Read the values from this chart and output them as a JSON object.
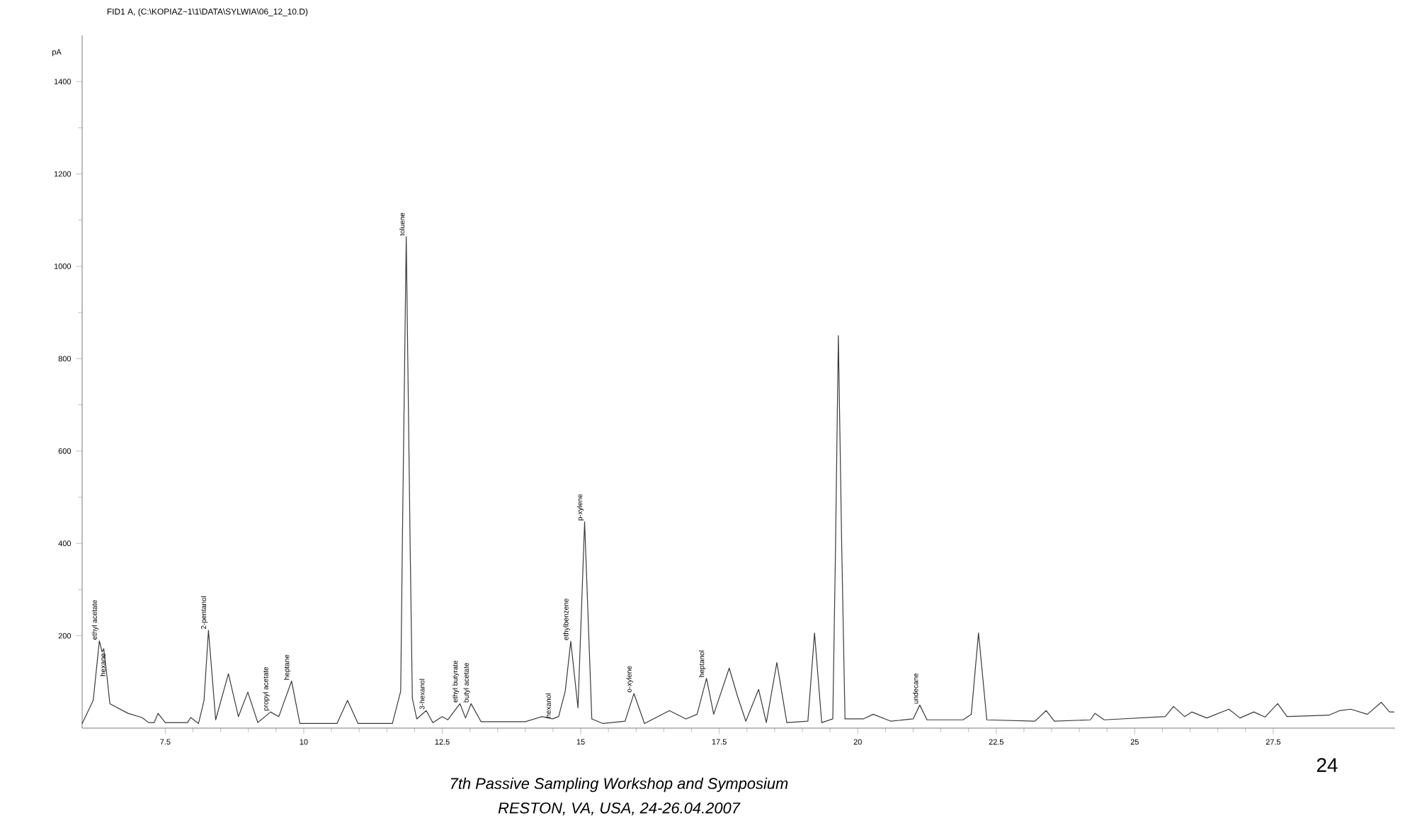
{
  "chart_data": {
    "type": "line",
    "title": "FID1 A,  (C:\\KOPIAZ~1\\1\\DATA\\SYLWIA\\06_12_10.D)",
    "ylabel": "pA",
    "x": [
      6.0,
      6.2,
      6.31,
      6.36,
      6.39,
      6.45,
      6.5,
      6.83,
      7.08,
      7.2,
      7.3,
      7.37,
      7.5,
      7.9,
      7.96,
      8.1,
      8.2,
      8.28,
      8.41,
      8.64,
      8.82,
      8.99,
      9.17,
      9.4,
      9.55,
      9.78,
      9.93,
      10.6,
      10.79,
      10.98,
      11.6,
      11.75,
      11.78,
      11.85,
      11.92,
      11.96,
      12.04,
      12.21,
      12.33,
      12.5,
      12.6,
      12.82,
      12.92,
      13.02,
      13.2,
      14.0,
      14.3,
      14.49,
      14.6,
      14.72,
      14.82,
      14.95,
      15.07,
      15.2,
      15.4,
      15.8,
      15.96,
      16.15,
      16.6,
      16.9,
      17.1,
      17.27,
      17.4,
      17.68,
      17.83,
      17.98,
      18.21,
      18.35,
      18.54,
      18.72,
      19.1,
      19.22,
      19.35,
      19.55,
      19.6,
      19.65,
      19.71,
      19.77,
      20.1,
      20.28,
      20.6,
      21.0,
      21.12,
      21.25,
      21.9,
      22.05,
      22.18,
      22.33,
      23.2,
      23.4,
      23.55,
      24.2,
      24.28,
      24.45,
      25.55,
      25.7,
      25.9,
      26.03,
      26.3,
      26.7,
      26.9,
      27.15,
      27.35,
      27.58,
      27.75,
      28.5,
      28.7,
      28.9,
      29.2,
      29.45,
      29.6,
      29.68
    ],
    "series": [
      {
        "color": "#3a3a3a",
        "values": [
          10,
          60,
          189,
          165,
          172,
          110,
          53,
          32,
          23,
          12,
          12,
          32,
          12,
          12,
          23,
          10,
          60,
          212,
          18,
          118,
          25,
          78,
          12,
          35,
          25,
          102,
          10,
          10,
          60,
          10,
          10,
          80,
          400,
          1064,
          400,
          65,
          20,
          38,
          12,
          25,
          18,
          53,
          22,
          53,
          14,
          14,
          25,
          20,
          25,
          80,
          188,
          44,
          447,
          20,
          10,
          15,
          75,
          10,
          38,
          20,
          30,
          108,
          30,
          130,
          69,
          15,
          84,
          12,
          142,
          12,
          15,
          206,
          12,
          20,
          400,
          850,
          400,
          20,
          20,
          30,
          15,
          20,
          50,
          18,
          18,
          30,
          206,
          18,
          15,
          38,
          15,
          18,
          32,
          18,
          25,
          47,
          25,
          35,
          22,
          41,
          22,
          35,
          24,
          53,
          25,
          28,
          38,
          41,
          30,
          56,
          35,
          35
        ]
      }
    ],
    "xlim": [
      6.0,
      29.7
    ],
    "ylim": [
      0,
      1500
    ],
    "xticks": [
      7.5,
      10,
      12.5,
      15,
      17.5,
      20,
      22.5,
      25,
      27.5
    ],
    "yticks": [
      200,
      400,
      600,
      800,
      1000,
      1200,
      1400
    ],
    "annotations": [
      {
        "text": "ethyl acetate",
        "x": 6.31,
        "y": 189
      },
      {
        "text": "hexane",
        "x": 6.45,
        "y": 110
      },
      {
        "text": "2-pentanol",
        "x": 8.28,
        "y": 212
      },
      {
        "text": "propyl acetate",
        "x": 9.4,
        "y": 35
      },
      {
        "text": "heptane",
        "x": 9.78,
        "y": 102
      },
      {
        "text": "toluene",
        "x": 11.85,
        "y": 1064
      },
      {
        "text": "3-hexanol",
        "x": 12.21,
        "y": 38
      },
      {
        "text": "ethyl butyrate",
        "x": 12.82,
        "y": 53
      },
      {
        "text": "butyl acetate",
        "x": 13.02,
        "y": 53
      },
      {
        "text": "hexanol",
        "x": 14.49,
        "y": 20
      },
      {
        "text": "ethylbenzene",
        "x": 14.82,
        "y": 188
      },
      {
        "text": "p-xylene",
        "x": 15.07,
        "y": 447
      },
      {
        "text": "o-xylene",
        "x": 15.96,
        "y": 75
      },
      {
        "text": "heptanol",
        "x": 17.27,
        "y": 108
      },
      {
        "text": "undecane",
        "x": 21.12,
        "y": 50
      },
      "7th Passive Sampling Workshop and Symposium",
      "RESTON, VA, USA, 24-26.04.2007",
      "24"
    ]
  }
}
